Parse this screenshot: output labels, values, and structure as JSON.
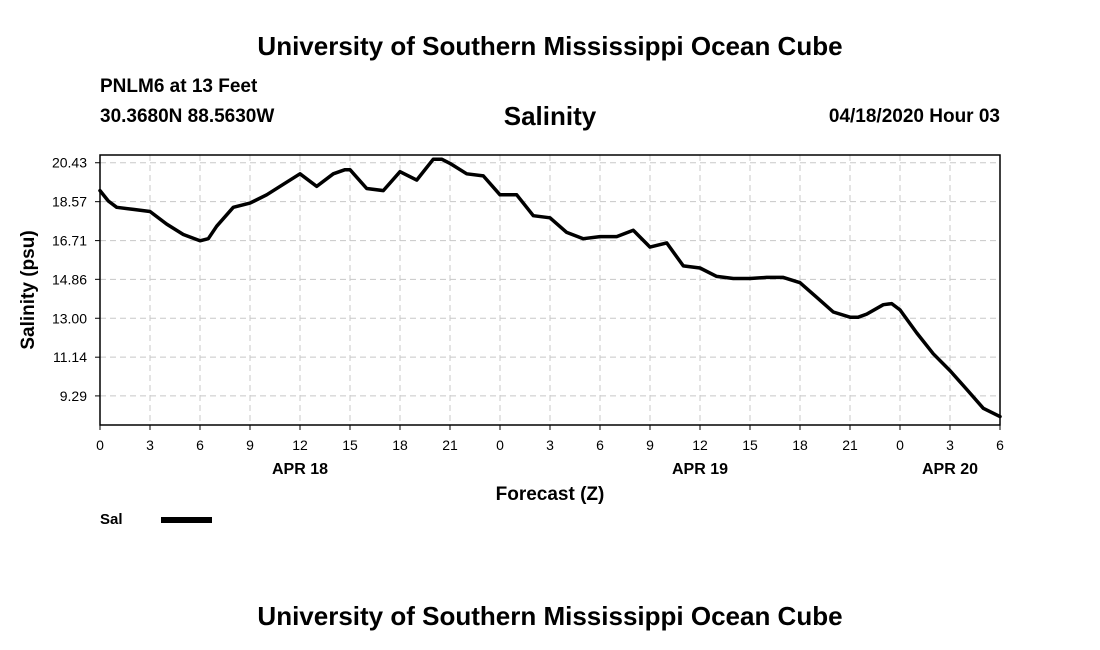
{
  "header": {
    "title": "University of Southern Mississippi Ocean Cube",
    "station": "PNLM6 at 13 Feet",
    "coords": "30.3680N 88.5630W",
    "chart_title": "Salinity",
    "datetime": "04/18/2020 Hour 03"
  },
  "footer": {
    "title": "University of Southern Mississippi Ocean Cube"
  },
  "legend": {
    "label": "Sal"
  },
  "chart_data": {
    "type": "line",
    "title": "Salinity",
    "xlabel": "Forecast (Z)",
    "ylabel": "Salinity (psu)",
    "xlim": [
      0,
      54
    ],
    "ylim": [
      7.9,
      20.8
    ],
    "yticks": [
      9.29,
      11.14,
      13.0,
      14.86,
      16.71,
      18.57,
      20.43
    ],
    "ytick_labels": [
      "9.29",
      "11.14",
      "13.00",
      "14.86",
      "16.71",
      "18.57",
      "20.43"
    ],
    "xticks": [
      0,
      3,
      6,
      9,
      12,
      15,
      18,
      21,
      24,
      27,
      30,
      33,
      36,
      39,
      42,
      45,
      48,
      51,
      54
    ],
    "xtick_labels": [
      "0",
      "3",
      "6",
      "9",
      "12",
      "15",
      "18",
      "21",
      "0",
      "3",
      "6",
      "9",
      "12",
      "15",
      "18",
      "21",
      "0",
      "3",
      "6"
    ],
    "date_labels": [
      {
        "x": 12,
        "label": "APR 18"
      },
      {
        "x": 36,
        "label": "APR 19"
      },
      {
        "x": 51,
        "label": "APR 20"
      }
    ],
    "grid": true,
    "series": [
      {
        "name": "Sal",
        "color": "#000000",
        "x": [
          0,
          0.5,
          1,
          2,
          3,
          4,
          5,
          6,
          6.5,
          7,
          8,
          9,
          10,
          11,
          12,
          13,
          14,
          14.7,
          15,
          16,
          17,
          18,
          19,
          20,
          20.5,
          21,
          22,
          23,
          24,
          25,
          26,
          27,
          28,
          29,
          30,
          31,
          32,
          33,
          34,
          35,
          36,
          37,
          38,
          39,
          40,
          41,
          42,
          43,
          44,
          45,
          45.5,
          46,
          47,
          47.5,
          48,
          49,
          50,
          51,
          52,
          53,
          54
        ],
        "values": [
          19.1,
          18.6,
          18.3,
          18.2,
          18.1,
          17.5,
          17.0,
          16.7,
          16.8,
          17.4,
          18.3,
          18.5,
          18.9,
          19.4,
          19.9,
          19.3,
          19.9,
          20.1,
          20.1,
          19.2,
          19.1,
          20.0,
          19.6,
          20.6,
          20.6,
          20.4,
          19.9,
          19.8,
          18.9,
          18.9,
          17.9,
          17.8,
          17.1,
          16.8,
          16.9,
          16.9,
          17.2,
          16.4,
          16.6,
          15.5,
          15.4,
          15.0,
          14.9,
          14.9,
          14.95,
          14.95,
          14.7,
          14.0,
          13.3,
          13.05,
          13.05,
          13.2,
          13.65,
          13.7,
          13.4,
          12.3,
          11.3,
          10.5,
          9.6,
          8.7,
          8.3
        ]
      }
    ]
  }
}
